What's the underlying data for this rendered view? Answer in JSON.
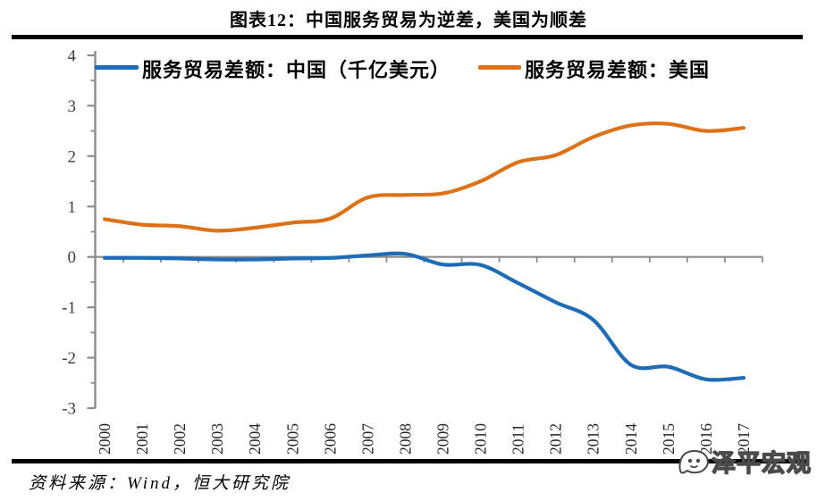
{
  "header": {
    "title": "图表12：中国服务贸易为逆差，美国为顺差"
  },
  "chart_data": {
    "type": "line",
    "title": "图表12：中国服务贸易为逆差，美国为顺差",
    "categories": [
      "2000",
      "2001",
      "2002",
      "2003",
      "2004",
      "2005",
      "2006",
      "2007",
      "2008",
      "2009",
      "2010",
      "2011",
      "2012",
      "2013",
      "2014",
      "2015",
      "2016",
      "2017"
    ],
    "series": [
      {
        "name": "服务贸易差额：中国（千亿美元）",
        "color": "#1E6CB5",
        "values": [
          -0.02,
          -0.02,
          -0.03,
          -0.05,
          -0.05,
          -0.03,
          -0.02,
          0.03,
          0.06,
          -0.15,
          -0.16,
          -0.52,
          -0.9,
          -1.25,
          -2.14,
          -2.18,
          -2.43,
          -2.4
        ]
      },
      {
        "name": "服务贸易差额：美国",
        "color": "#DC7118",
        "values": [
          0.75,
          0.64,
          0.61,
          0.52,
          0.58,
          0.68,
          0.76,
          1.18,
          1.23,
          1.26,
          1.5,
          1.88,
          2.02,
          2.38,
          2.61,
          2.64,
          2.5,
          2.56
        ]
      }
    ],
    "xlabel": "",
    "ylabel": "",
    "ylim": [
      -3,
      4
    ],
    "y_ticks": [
      4,
      3,
      2,
      1,
      0,
      -1,
      -2,
      -3
    ],
    "y_minor_tick_step": 0.5,
    "x_tick_rotation": 90,
    "grid": false,
    "legend_position": "top",
    "smoothed": true
  },
  "footer": {
    "source": "资料来源：Wind，恒大研究院"
  },
  "watermark": {
    "text": "泽平宏观"
  },
  "colors": {
    "axis": "#8C8C8C",
    "y_tick_label": "#3F3F3F",
    "x_tick_label": "#262626",
    "china_line": "#1E6CB5",
    "us_line": "#DC7118",
    "rule": "#000000",
    "background": "#FFFFFF"
  }
}
